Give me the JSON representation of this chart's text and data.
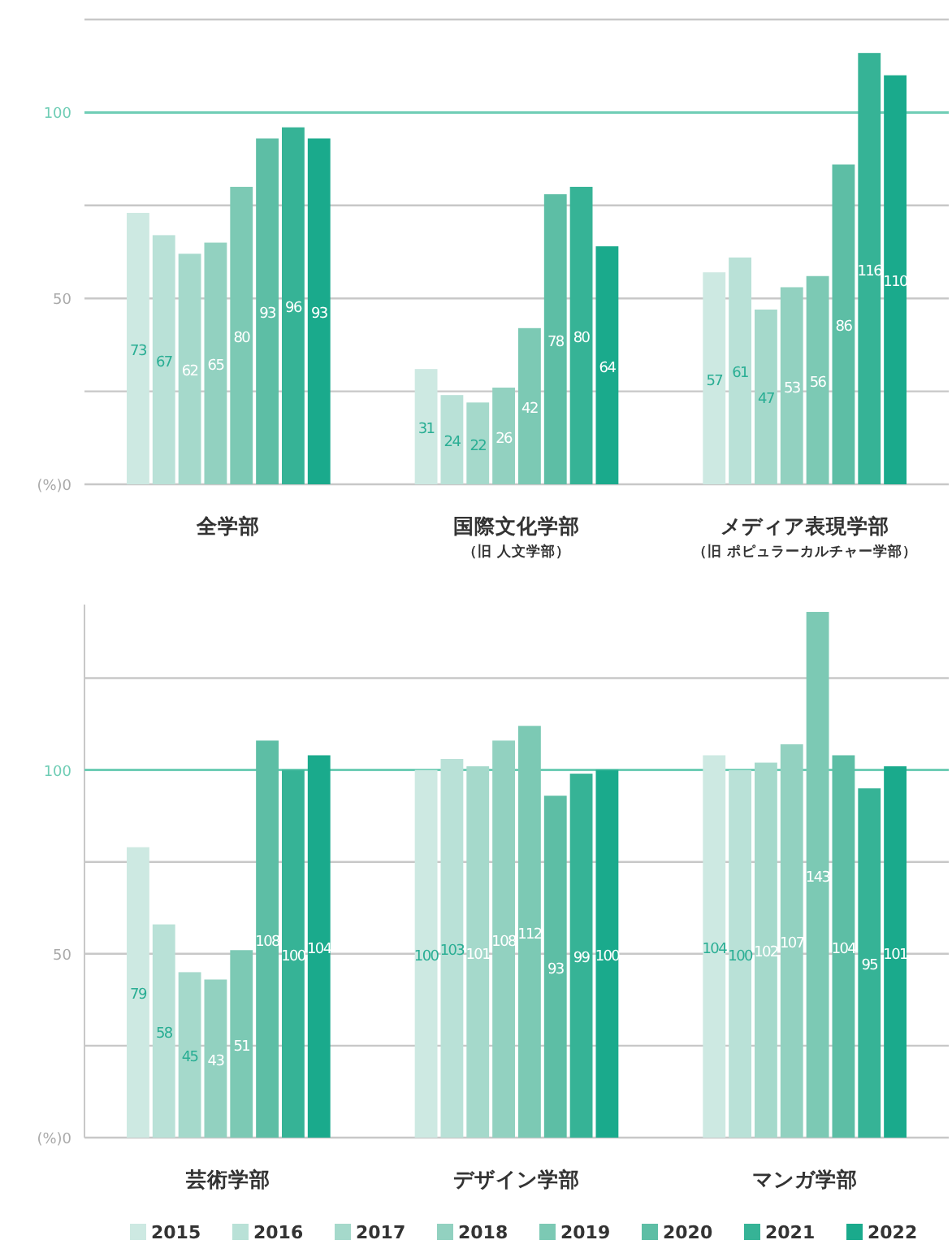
{
  "chart_data": [
    {
      "type": "bar",
      "categories": [
        "全学部",
        "国際文化学部（旧 人文学部）",
        "メディア表現学部（旧 ポピュラーカルチャー学部）"
      ],
      "series": [
        {
          "color": "#cde9e2",
          "values": [
            73,
            31,
            57
          ]
        },
        {
          "color": "#b9e1d7",
          "values": [
            67,
            24,
            61
          ]
        },
        {
          "color": "#a5d9cb",
          "values": [
            62,
            22,
            47
          ]
        },
        {
          "color": "#92d1c0",
          "values": [
            65,
            26,
            53
          ]
        },
        {
          "color": "#7cc9b4",
          "values": [
            80,
            42,
            56
          ]
        },
        {
          "color": "#5dbea5",
          "values": [
            93,
            78,
            86
          ]
        },
        {
          "color": "#36b396",
          "values": [
            96,
            80,
            116
          ]
        },
        {
          "color": "#1aaa8c",
          "values": [
            93,
            64,
            110
          ]
        }
      ],
      "ylim": [
        0,
        125
      ],
      "yticks": [
        {
          "value": 0,
          "label": "(%)0"
        },
        {
          "value": 25,
          "label": null
        },
        50,
        {
          "value": 75,
          "label": null
        },
        {
          "value": 125,
          "label": null
        }
      ],
      "ref_lines": [
        {
          "axis": "y",
          "value": 100,
          "label": "100",
          "color": "#6fcdb5"
        }
      ],
      "grid": "y",
      "data_labels": true,
      "legend": false
    },
    {
      "type": "bar",
      "categories": [
        "芸術学部",
        "デザイン学部",
        "マンガ学部"
      ],
      "series": [
        {
          "name": "2015",
          "color": "#cde9e2",
          "values": [
            79,
            100,
            104
          ]
        },
        {
          "name": "2016",
          "color": "#b9e1d7",
          "values": [
            58,
            103,
            100
          ]
        },
        {
          "name": "2017",
          "color": "#a5d9cb",
          "values": [
            45,
            101,
            102
          ]
        },
        {
          "name": "2018",
          "color": "#92d1c0",
          "values": [
            43,
            108,
            107
          ]
        },
        {
          "name": "2019",
          "color": "#7cc9b4",
          "values": [
            51,
            112,
            143
          ]
        },
        {
          "name": "2020",
          "color": "#5dbea5",
          "values": [
            108,
            93,
            104
          ]
        },
        {
          "name": "2021",
          "color": "#36b396",
          "values": [
            100,
            99,
            95
          ]
        },
        {
          "name": "2022",
          "color": "#1aaa8c",
          "values": [
            104,
            100,
            101
          ]
        }
      ],
      "ylim": [
        0,
        145
      ],
      "yticks": [
        {
          "value": 0,
          "label": "(%)0"
        },
        {
          "value": 25,
          "label": null
        },
        50,
        {
          "value": 75,
          "label": null
        },
        {
          "value": 125,
          "label": null
        }
      ],
      "ref_lines": [
        {
          "axis": "y",
          "value": 100,
          "label": "100",
          "color": "#6fcdb5"
        }
      ],
      "grid": "y",
      "data_labels": true,
      "legend": "bottom"
    }
  ]
}
